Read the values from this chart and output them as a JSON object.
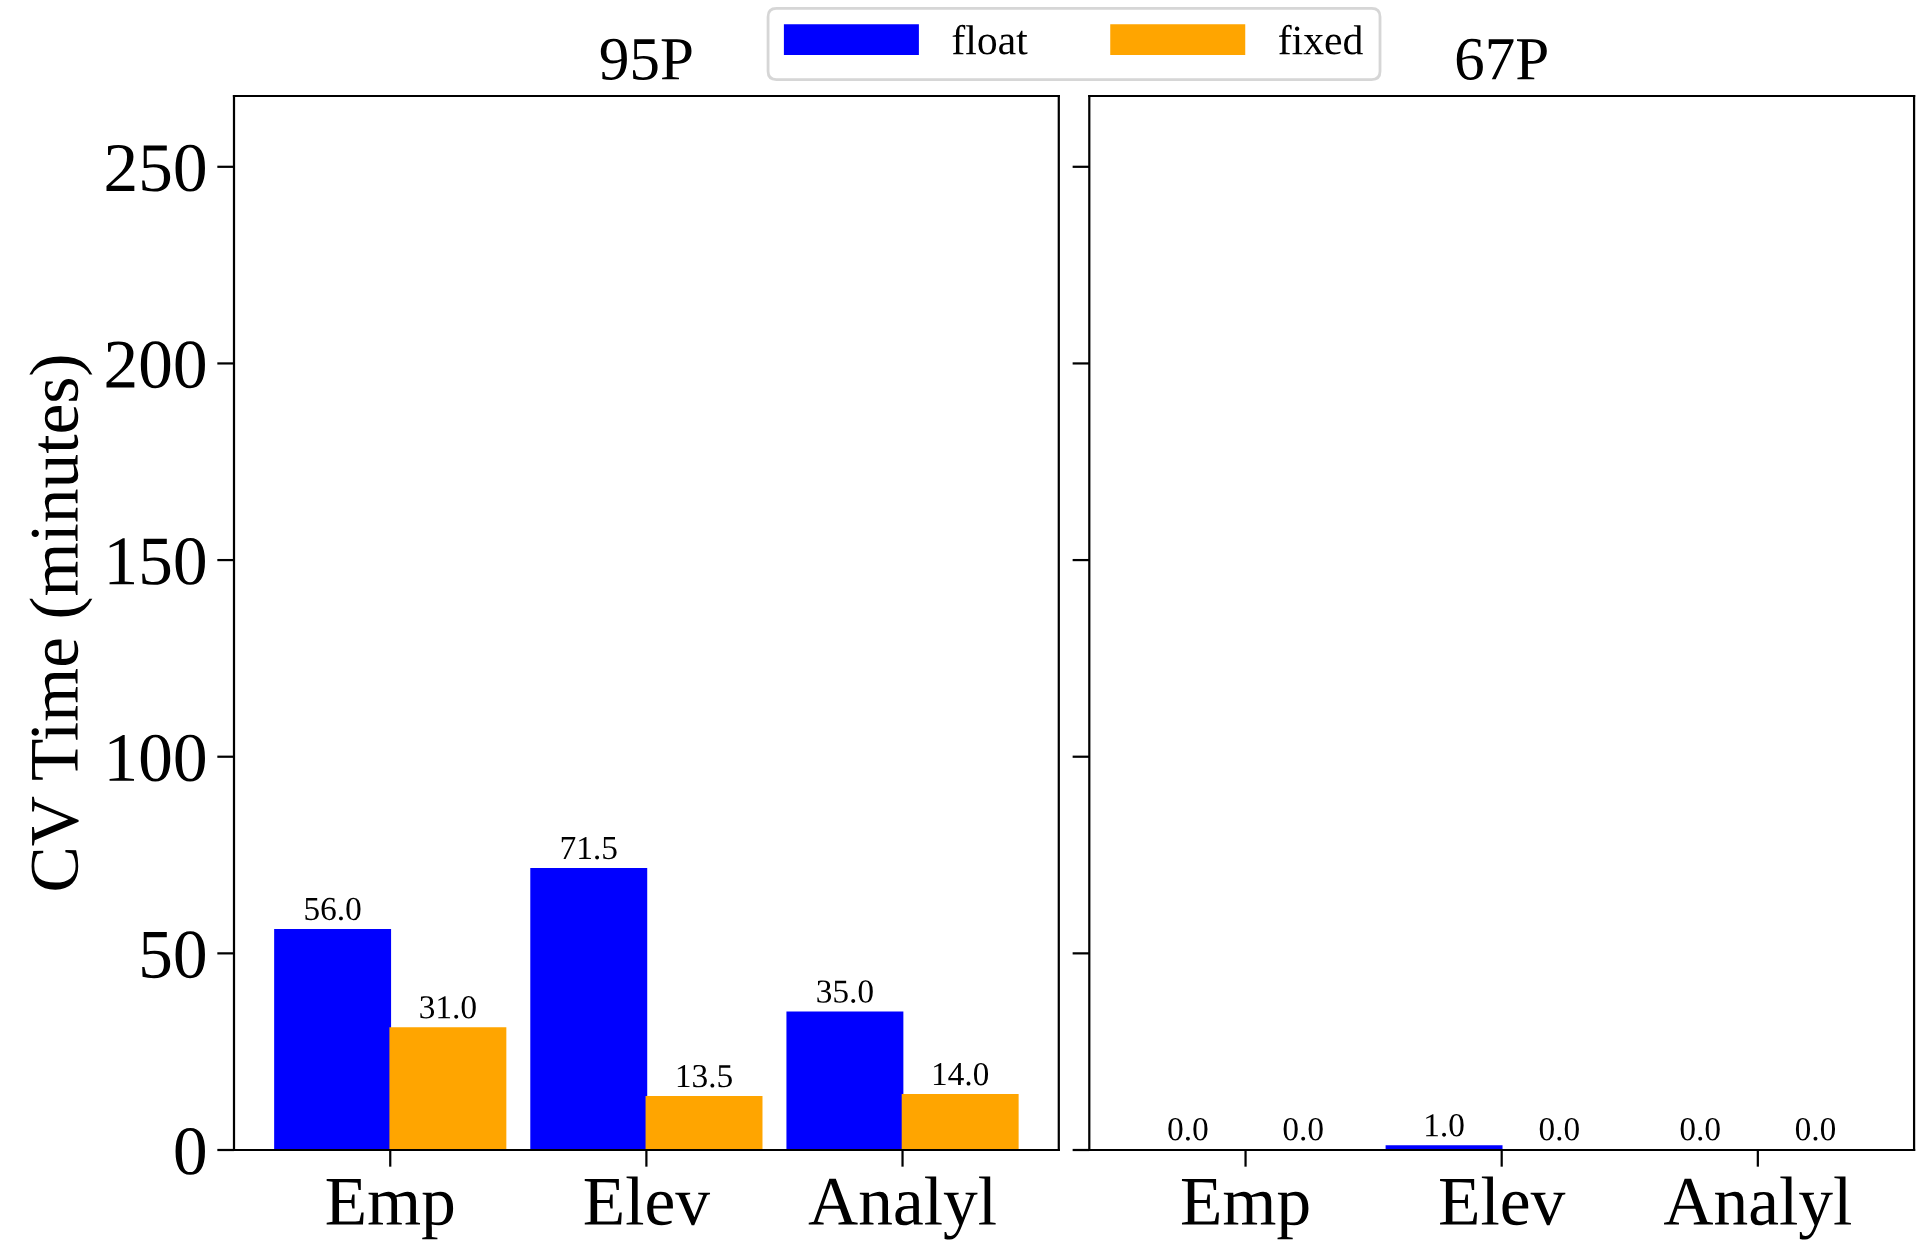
{
  "chart_data": [
    {
      "type": "bar",
      "title": "95P",
      "ylabel": "CV Time (minutes)",
      "categories": [
        "Emp",
        "Elev",
        "Analyl"
      ],
      "legend": "top",
      "ylim": [
        0,
        268
      ],
      "yticks": [
        0,
        50,
        100,
        150,
        200,
        250
      ],
      "series": [
        {
          "name": "float",
          "color": "#0000ff",
          "values": [
            56.0,
            71.5,
            35.0
          ],
          "value_labels": [
            "56.0",
            "71.5",
            "35.0"
          ]
        },
        {
          "name": "fixed",
          "color": "#ffa500",
          "values": [
            31.0,
            13.5,
            14.0
          ],
          "value_labels": [
            "31.0",
            "13.5",
            "14.0"
          ]
        }
      ]
    },
    {
      "type": "bar",
      "title": "67P",
      "categories": [
        "Emp",
        "Elev",
        "Analyl"
      ],
      "ylim": [
        0,
        268
      ],
      "yticks": [
        0,
        50,
        100,
        150,
        200,
        250
      ],
      "tick_labels": "x",
      "series": [
        {
          "color": "#0000ff",
          "values": [
            0.0,
            1.0,
            0.0
          ],
          "value_labels": [
            "0.0",
            "1.0",
            "0.0"
          ]
        },
        {
          "color": "#ffa500",
          "values": [
            0.0,
            0.0,
            0.0
          ],
          "value_labels": [
            "0.0",
            "0.0",
            "0.0"
          ]
        }
      ]
    }
  ]
}
